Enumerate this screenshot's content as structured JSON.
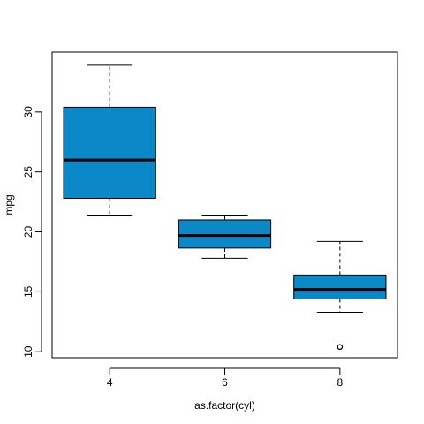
{
  "chart_data": {
    "type": "box",
    "xlabel": "as.factor(cyl)",
    "ylabel": "mpg",
    "ylim": [
      9.5,
      35
    ],
    "yticks": [
      10,
      15,
      20,
      25,
      30
    ],
    "categories": [
      "4",
      "6",
      "8"
    ],
    "boxes": [
      {
        "category": "4",
        "whisker_low": 21.4,
        "q1": 22.8,
        "median": 26.0,
        "q3": 30.4,
        "whisker_high": 33.9,
        "outliers": []
      },
      {
        "category": "6",
        "whisker_low": 17.8,
        "q1": 18.65,
        "median": 19.7,
        "q3": 21.0,
        "whisker_high": 21.4,
        "outliers": []
      },
      {
        "category": "8",
        "whisker_low": 13.3,
        "q1": 14.4,
        "median": 15.2,
        "q3": 16.4,
        "whisker_high": 19.2,
        "outliers": [
          10.4
        ]
      }
    ],
    "box_fill": "#0b88c7",
    "grid": false,
    "legend": "none"
  }
}
